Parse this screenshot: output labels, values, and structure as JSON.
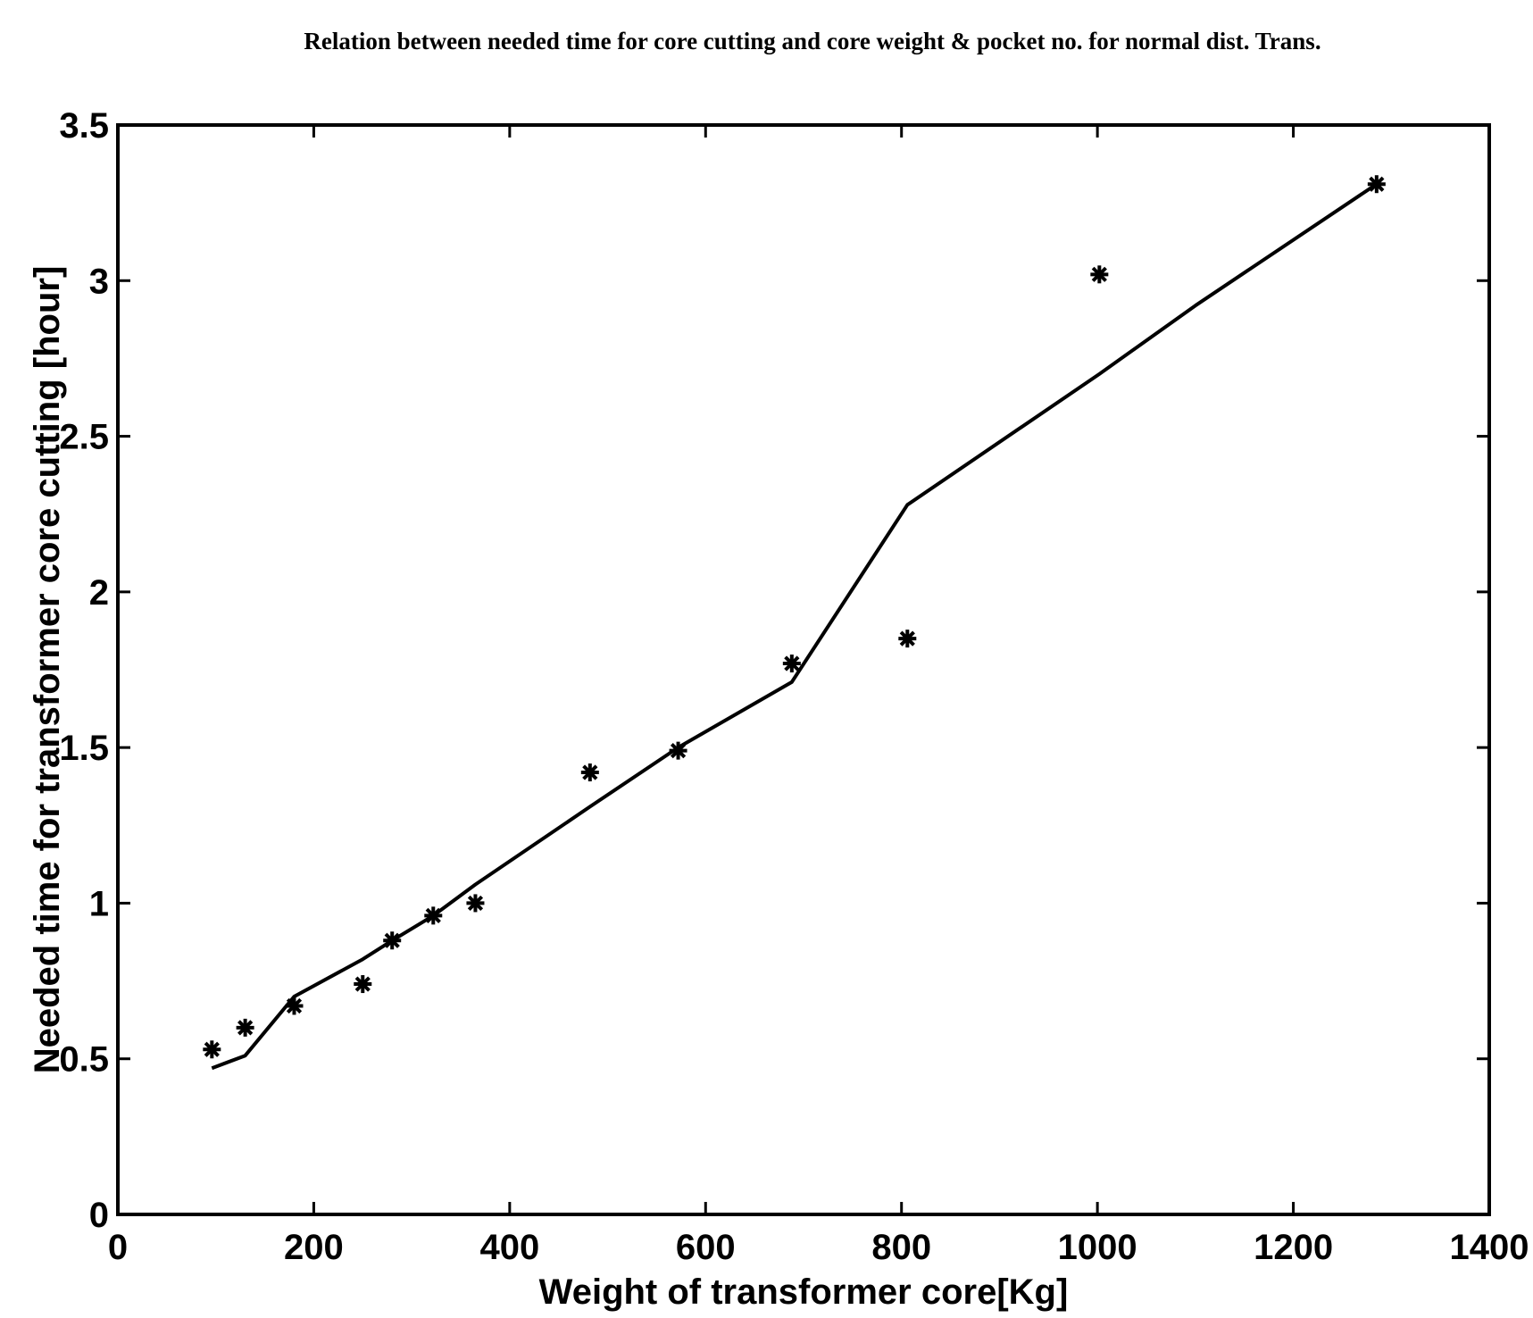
{
  "chart_data": {
    "type": "line",
    "title": "Relation between needed time for core cutting and core weight & pocket no. for normal dist. Trans.",
    "xlabel": "Weight of transformer core[Kg]",
    "ylabel": "Needed time for transformer core cutting [hour]",
    "xlim": [
      0,
      1400
    ],
    "ylim": [
      0,
      3.5
    ],
    "xticks": [
      0,
      200,
      400,
      600,
      800,
      1000,
      1200,
      1400
    ],
    "yticks": [
      0,
      0.5,
      1,
      1.5,
      2,
      2.5,
      3,
      3.5
    ],
    "xtick_labels": [
      "0",
      "200",
      "400",
      "600",
      "800",
      "1000",
      "1200",
      "1400"
    ],
    "ytick_labels": [
      "0",
      "0.5",
      "1",
      "1.5",
      "2",
      "2.5",
      "3",
      "3.5"
    ],
    "grid": false,
    "legend": false,
    "series": [
      {
        "style": "markers",
        "marker": "asterisk",
        "color": "#000000",
        "x": [
          96,
          130,
          180,
          250,
          280,
          322,
          365,
          482,
          572,
          688,
          806,
          1002,
          1285
        ],
        "y": [
          0.53,
          0.6,
          0.67,
          0.74,
          0.88,
          0.96,
          1.0,
          1.42,
          1.49,
          1.77,
          1.85,
          3.02,
          3.31
        ]
      },
      {
        "style": "line",
        "color": "#000000",
        "x": [
          96,
          130,
          180,
          250,
          280,
          322,
          365,
          482,
          572,
          688,
          806,
          1002,
          1100,
          1285
        ],
        "y": [
          0.47,
          0.51,
          0.7,
          0.82,
          0.88,
          0.96,
          1.06,
          1.31,
          1.5,
          1.71,
          2.28,
          2.7,
          2.92,
          3.31
        ]
      }
    ]
  }
}
